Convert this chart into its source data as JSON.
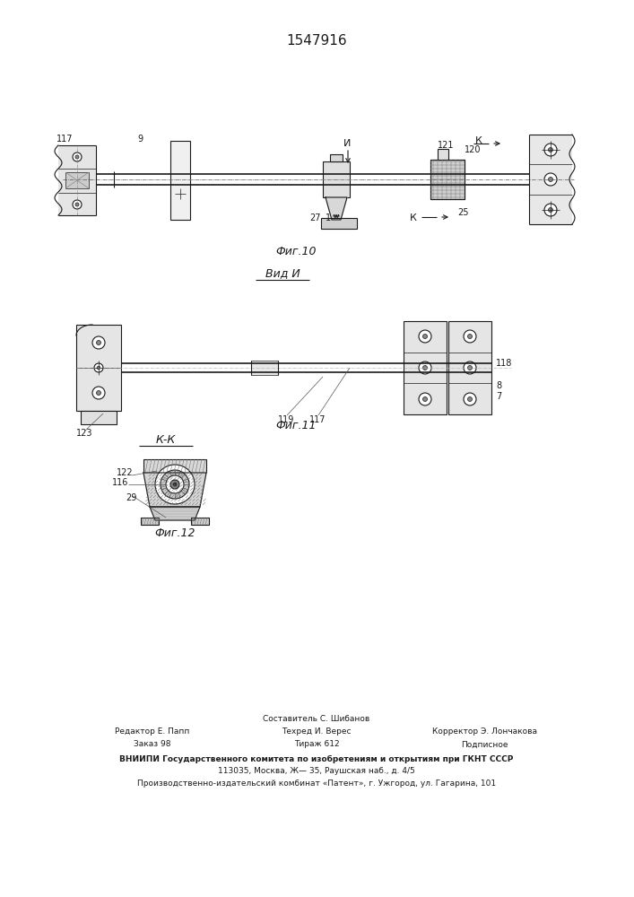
{
  "title": "1547916",
  "fig1_caption": "Фиг.10",
  "fig2_caption": "Фиг.11",
  "fig3_caption": "Фиг.12",
  "view_label": "Вид И",
  "section_label": "К-К",
  "И_label": "И",
  "К_label": "К",
  "bg_color": "#ffffff",
  "lc": "#1a1a1a",
  "gray_fill": "#d8d8d8",
  "light_fill": "#eeeeee",
  "footer_col1": "   Редактор Е. Папп\n   Заказ 98",
  "footer_col2": "Составитель С. Шибанов\nТехред И. Верес\nТираж 612",
  "footer_col3": "Корректор Э. Лончакова\nПодписное",
  "footer_vniip": "ВНИИПИ Государственного комитета по изобретениям и открытиям при ГКНТ СССР",
  "footer_addr": "113035, Москва, Ж— 35, Раушская наб., д. 4/5",
  "footer_patent": "Производственно-издательский комбинат «Патент», г. Ужгород, ул. Гагарина, 101"
}
